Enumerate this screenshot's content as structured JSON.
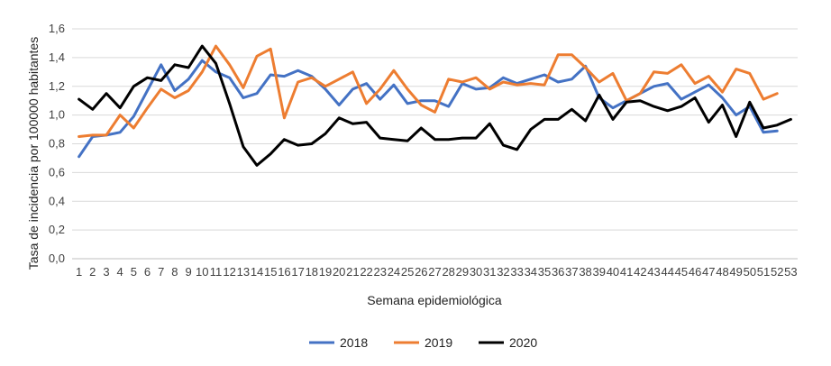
{
  "chart_data": {
    "type": "line",
    "xlabel": "Semana epidemiológica",
    "ylabel": "Tasa de incidencia por 100000 habitantes",
    "ylim": [
      0,
      1.6
    ],
    "yticks": [
      "0,0",
      "0,2",
      "0,4",
      "0,6",
      "0,8",
      "1,0",
      "1,2",
      "1,4",
      "1,6"
    ],
    "grid": "horizontal",
    "legend_position": "bottom",
    "categories": [
      "1",
      "2",
      "3",
      "4",
      "5",
      "6",
      "7",
      "8",
      "9",
      "10",
      "11",
      "12",
      "13",
      "14",
      "15",
      "16",
      "17",
      "18",
      "19",
      "20",
      "21",
      "22",
      "23",
      "24",
      "25",
      "26",
      "27",
      "28",
      "29",
      "30",
      "31",
      "32",
      "33",
      "34",
      "35",
      "36",
      "37",
      "38",
      "39",
      "40",
      "41",
      "42",
      "43",
      "44",
      "45",
      "46",
      "47",
      "48",
      "49",
      "50",
      "51",
      "52",
      "53"
    ],
    "series": [
      {
        "name": "2018",
        "color": "#4472C4",
        "values": [
          0.71,
          0.85,
          0.86,
          0.88,
          0.99,
          1.17,
          1.35,
          1.17,
          1.25,
          1.38,
          1.3,
          1.26,
          1.12,
          1.15,
          1.28,
          1.27,
          1.31,
          1.27,
          1.18,
          1.07,
          1.18,
          1.22,
          1.11,
          1.21,
          1.08,
          1.1,
          1.1,
          1.06,
          1.22,
          1.18,
          1.19,
          1.26,
          1.22,
          1.25,
          1.28,
          1.23,
          1.25,
          1.34,
          1.12,
          1.05,
          1.1,
          1.15,
          1.2,
          1.22,
          1.11,
          1.16,
          1.21,
          1.12,
          1.0,
          1.06,
          0.88,
          0.89,
          null
        ]
      },
      {
        "name": "2019",
        "color": "#ED7D31",
        "values": [
          0.85,
          0.86,
          0.86,
          1.0,
          0.91,
          1.05,
          1.18,
          1.12,
          1.17,
          1.3,
          1.48,
          1.35,
          1.19,
          1.41,
          1.46,
          0.98,
          1.23,
          1.26,
          1.2,
          1.25,
          1.3,
          1.08,
          1.18,
          1.31,
          1.18,
          1.07,
          1.02,
          1.25,
          1.23,
          1.26,
          1.18,
          1.23,
          1.21,
          1.22,
          1.21,
          1.42,
          1.42,
          1.33,
          1.23,
          1.29,
          1.1,
          1.15,
          1.3,
          1.29,
          1.35,
          1.22,
          1.27,
          1.16,
          1.32,
          1.29,
          1.11,
          1.15,
          null
        ]
      },
      {
        "name": "2020",
        "color": "#000000",
        "values": [
          1.11,
          1.04,
          1.15,
          1.05,
          1.2,
          1.26,
          1.24,
          1.35,
          1.33,
          1.48,
          1.36,
          1.08,
          0.78,
          0.65,
          0.73,
          0.83,
          0.79,
          0.8,
          0.87,
          0.98,
          0.94,
          0.95,
          0.84,
          0.83,
          0.82,
          0.91,
          0.83,
          0.83,
          0.84,
          0.84,
          0.94,
          0.79,
          0.76,
          0.9,
          0.97,
          0.97,
          1.04,
          0.96,
          1.14,
          0.97,
          1.09,
          1.1,
          1.06,
          1.03,
          1.06,
          1.12,
          0.95,
          1.07,
          0.85,
          1.09,
          0.91,
          0.93,
          0.97
        ]
      }
    ]
  }
}
